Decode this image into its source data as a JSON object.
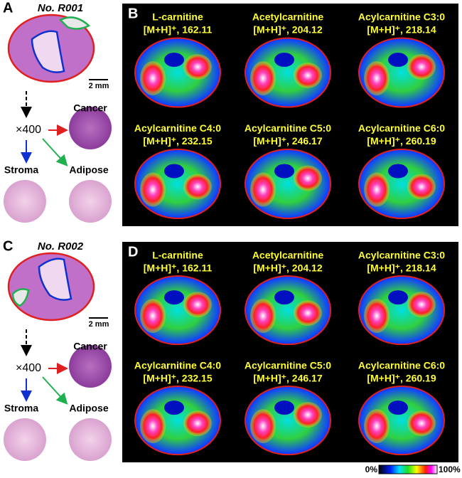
{
  "panels": [
    {
      "label": "A",
      "sample": "No. R001",
      "scale_bar": "2 mm",
      "magnification": "×400",
      "regions": [
        "Cancer",
        "Stroma",
        "Adipose"
      ]
    },
    {
      "label": "B",
      "images": [
        {
          "name": "L-carnitine",
          "ion": "[M+H]⁺, 162.11"
        },
        {
          "name": "Acetylcarnitine",
          "ion": "[M+H]⁺, 204.12"
        },
        {
          "name": "Acylcarnitine C3:0",
          "ion": "[M+H]⁺, 218.14"
        },
        {
          "name": "Acylcarnitine C4:0",
          "ion": "[M+H]⁺, 232.15"
        },
        {
          "name": "Acylcarnitine C5:0",
          "ion": "[M+H]⁺, 246.17"
        },
        {
          "name": "Acylcarnitine C6:0",
          "ion": "[M+H]⁺, 260.19"
        }
      ]
    },
    {
      "label": "C",
      "sample": "No. R002",
      "scale_bar": "2 mm",
      "magnification": "×400",
      "regions": [
        "Cancer",
        "Stroma",
        "Adipose"
      ]
    },
    {
      "label": "D",
      "images": [
        {
          "name": "L-carnitine",
          "ion": "[M+H]⁺, 162.11"
        },
        {
          "name": "Acetylcarnitine",
          "ion": "[M+H]⁺, 204.12"
        },
        {
          "name": "Acylcarnitine C3:0",
          "ion": "[M+H]⁺, 218.14"
        },
        {
          "name": "Acylcarnitine C4:0",
          "ion": "[M+H]⁺, 232.15"
        },
        {
          "name": "Acylcarnitine C5:0",
          "ion": "[M+H]⁺, 246.17"
        },
        {
          "name": "Acylcarnitine C6:0",
          "ion": "[M+H]⁺, 260.19"
        }
      ]
    }
  ],
  "colorbar": {
    "min": "0%",
    "max": "100%"
  }
}
